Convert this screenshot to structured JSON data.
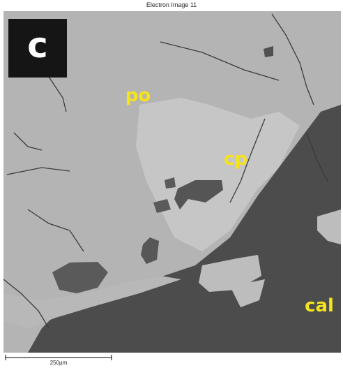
{
  "header": {
    "title": "Electron Image 11"
  },
  "panel_label": "c",
  "annotations": [
    "po",
    "cp",
    "cal"
  ],
  "scale_bar": {
    "label": "250µm"
  }
}
